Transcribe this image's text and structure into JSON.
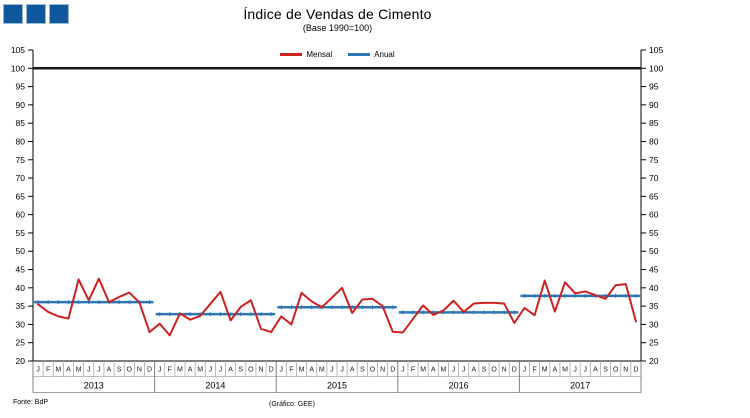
{
  "title": "Índice de Vendas de Cimento",
  "subtitle": "(Base 1990=100)",
  "logo": {
    "fill": "#10589E",
    "border": "#9DB8D2"
  },
  "legend": {
    "items": [
      {
        "label": "Mensal",
        "color": "#CC2222"
      },
      {
        "label": "Anual",
        "color": "#2E75B6"
      }
    ]
  },
  "footer": {
    "source": "Fonte: BdP",
    "credit": "(Gráfico: GEE)"
  },
  "colors": {
    "monthly_line": "#CC2222",
    "annual_line": "#2E75B6",
    "reference_line": "#1a1a1a",
    "axis": "#000000",
    "minor_grid": "#aaaaaa",
    "year_grid": "#808080"
  },
  "chart_data": {
    "type": "line",
    "title": "Índice de Vendas de Cimento",
    "subtitle": "(Base 1990=100)",
    "ylim": [
      20,
      105
    ],
    "ytick_step": 5,
    "reference_line": 100,
    "month_labels": [
      "J",
      "F",
      "M",
      "A",
      "M",
      "J",
      "J",
      "A",
      "S",
      "O",
      "N",
      "D"
    ],
    "years": [
      "2013",
      "2014",
      "2015",
      "2016",
      "2017"
    ],
    "series": [
      {
        "name": "Mensal",
        "color": "#CC2222",
        "values_by_year": {
          "2013": [
            35.5,
            33.4,
            32.2,
            31.6,
            42.3,
            36.6,
            42.5,
            36.1,
            37.5,
            38.7,
            36.0,
            27.9
          ],
          "2014": [
            30.2,
            27.0,
            33.0,
            31.3,
            32.3,
            35.6,
            38.9,
            31.1,
            34.8,
            36.6,
            28.8,
            27.9
          ],
          "2015": [
            32.2,
            30.0,
            38.6,
            36.3,
            34.7,
            37.3,
            40.0,
            33.1,
            36.8,
            37.0,
            35.0,
            28.0
          ],
          "2016": [
            27.8,
            31.5,
            35.2,
            32.6,
            33.8,
            36.5,
            33.4,
            35.7,
            35.9,
            35.9,
            35.7,
            30.4
          ],
          "2017": [
            34.5,
            32.5,
            42.0,
            33.5,
            41.5,
            38.5,
            39.0,
            38.0,
            37.0,
            40.7,
            41.0,
            30.8
          ]
        }
      },
      {
        "name": "Anual",
        "color": "#2E75B6",
        "values_by_year": {
          "2013": 36.1,
          "2014": 32.8,
          "2015": 34.7,
          "2016": 33.3,
          "2017": 37.8
        }
      }
    ]
  }
}
